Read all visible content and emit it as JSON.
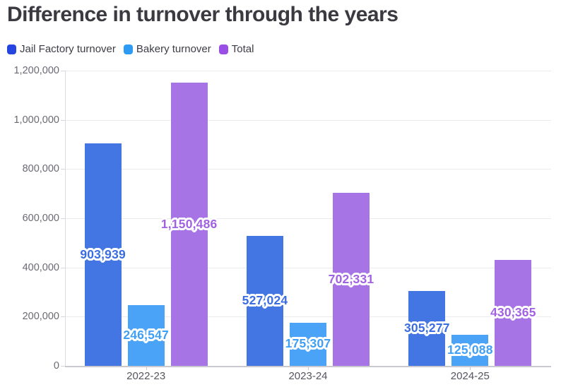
{
  "title": "Difference in turnover through the years",
  "colors": {
    "background": "#ffffff",
    "title_text": "#3a3a40",
    "ytick_text": "#6a6a73",
    "category_text": "#55565e",
    "gridline": "#ebebee",
    "axis_line": "#c9c9cf"
  },
  "legend": [
    {
      "label": "Jail Factory turnover",
      "color": "#2545e0"
    },
    {
      "label": "Bakery turnover",
      "color": "#2d9bf4"
    },
    {
      "label": "Total",
      "color": "#994fe5"
    }
  ],
  "chart_data": {
    "type": "bar",
    "title": "Difference in turnover through the years",
    "categories": [
      "2022-23",
      "2023-24",
      "2024-25"
    ],
    "series": [
      {
        "name": "Jail Factory turnover",
        "bar_color": "#4376e2",
        "label_color": "#3a6ce2",
        "values": [
          903939,
          527024,
          305277
        ],
        "value_labels": [
          "903,939",
          "527,024",
          "305,277"
        ]
      },
      {
        "name": "Bakery turnover",
        "bar_color": "#4aa3f7",
        "label_color": "#3f9ff6",
        "values": [
          246547,
          175307,
          125088
        ],
        "value_labels": [
          "246,547",
          "175,307",
          "125,088"
        ]
      },
      {
        "name": "Total",
        "bar_color": "#a674e4",
        "label_color": "#a161e3",
        "values": [
          1150486,
          702331,
          430365
        ],
        "value_labels": [
          "1,150,486",
          "702,331",
          "430,365"
        ]
      }
    ],
    "ylim": [
      0,
      1200000
    ],
    "ytick_step": 200000,
    "ytick_labels": [
      "0",
      "200,000",
      "400,000",
      "600,000",
      "800,000",
      "1,000,000",
      "1,200,000"
    ],
    "grid": true,
    "legend_position": "top"
  }
}
